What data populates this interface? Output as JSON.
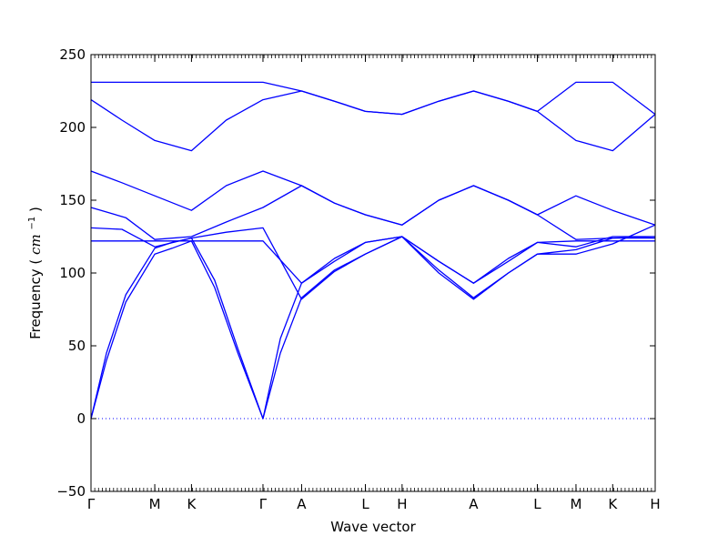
{
  "chart_data": {
    "type": "line",
    "title": "",
    "xlabel": "Wave vector",
    "ylabel": "Frequency",
    "ylabel_unit": "cm",
    "ylabel_unit_exp": "−1",
    "ylim": [
      -50,
      250
    ],
    "yticks": [
      -50,
      0,
      50,
      100,
      150,
      200,
      250
    ],
    "ytick_labels": [
      "−50",
      "0",
      "50",
      "100",
      "150",
      "200",
      "250"
    ],
    "xlim": [
      0,
      14.6
    ],
    "xticks": [
      {
        "x": 0,
        "label": "Γ"
      },
      {
        "x": 1.65,
        "label": "M"
      },
      {
        "x": 2.6,
        "label": "K"
      },
      {
        "x": 4.45,
        "label": "Γ"
      },
      {
        "x": 5.45,
        "label": "A"
      },
      {
        "x": 7.1,
        "label": "L"
      },
      {
        "x": 8.05,
        "label": "H"
      },
      {
        "x": 9.9,
        "label": "A"
      },
      {
        "x": 11.55,
        "label": "L"
      },
      {
        "x": 12.55,
        "label": "M"
      },
      {
        "x": 13.5,
        "label": "K"
      },
      {
        "x": 14.6,
        "label": "H"
      }
    ],
    "zero_line": true,
    "grid": false,
    "line_color": "#0000ff",
    "series": [
      {
        "points": [
          [
            0,
            0
          ],
          [
            0.4,
            40
          ],
          [
            0.9,
            80
          ],
          [
            1.65,
            113
          ],
          [
            2.1,
            117
          ],
          [
            2.6,
            122
          ],
          [
            3.2,
            90
          ],
          [
            3.8,
            45
          ],
          [
            4.45,
            0
          ],
          [
            4.9,
            45
          ],
          [
            5.45,
            83
          ],
          [
            6.3,
            102
          ],
          [
            7.1,
            113
          ],
          [
            8.05,
            125
          ],
          [
            9.0,
            102
          ],
          [
            9.9,
            83
          ],
          [
            10.8,
            100
          ],
          [
            11.55,
            113
          ],
          [
            12.55,
            116
          ],
          [
            13.5,
            124
          ],
          [
            14.6,
            124
          ]
        ]
      },
      {
        "points": [
          [
            0,
            0
          ],
          [
            0.4,
            45
          ],
          [
            0.9,
            85
          ],
          [
            1.65,
            117
          ],
          [
            2.1,
            121
          ],
          [
            2.6,
            124
          ],
          [
            3.2,
            95
          ],
          [
            3.8,
            48
          ],
          [
            4.45,
            0
          ],
          [
            4.9,
            55
          ],
          [
            5.45,
            93
          ],
          [
            6.3,
            108
          ],
          [
            7.1,
            121
          ],
          [
            8.05,
            125
          ],
          [
            9.0,
            108
          ],
          [
            9.9,
            93
          ],
          [
            10.8,
            108
          ],
          [
            11.55,
            121
          ],
          [
            12.55,
            118
          ],
          [
            13.5,
            125
          ],
          [
            14.6,
            125
          ]
        ]
      },
      {
        "points": [
          [
            0,
            122
          ],
          [
            1.65,
            122
          ],
          [
            2.6,
            122
          ],
          [
            4.45,
            122
          ],
          [
            5.45,
            93
          ],
          [
            6.3,
            110
          ],
          [
            7.1,
            121
          ],
          [
            8.05,
            125
          ],
          [
            9.0,
            108
          ],
          [
            9.9,
            93
          ],
          [
            10.8,
            110
          ],
          [
            11.55,
            121
          ],
          [
            12.55,
            122
          ],
          [
            13.5,
            122
          ],
          [
            14.6,
            122
          ]
        ]
      },
      {
        "points": [
          [
            0,
            131
          ],
          [
            0.8,
            130
          ],
          [
            1.65,
            118
          ],
          [
            2.6,
            124
          ],
          [
            3.5,
            128
          ],
          [
            4.45,
            131
          ],
          [
            5.45,
            82
          ],
          [
            6.3,
            101
          ],
          [
            7.1,
            113
          ],
          [
            8.05,
            125
          ],
          [
            9.0,
            100
          ],
          [
            9.9,
            82
          ],
          [
            10.8,
            100
          ],
          [
            11.55,
            113
          ],
          [
            12.55,
            113
          ],
          [
            13.5,
            120
          ],
          [
            14.6,
            133
          ]
        ]
      },
      {
        "points": [
          [
            0,
            145
          ],
          [
            0.9,
            138
          ],
          [
            1.65,
            123
          ],
          [
            2.6,
            125
          ],
          [
            3.5,
            135
          ],
          [
            4.45,
            145
          ],
          [
            5.45,
            160
          ],
          [
            6.3,
            148
          ],
          [
            7.1,
            140
          ],
          [
            8.05,
            133
          ],
          [
            9.0,
            150
          ],
          [
            9.9,
            160
          ],
          [
            10.8,
            150
          ],
          [
            11.55,
            140
          ],
          [
            12.55,
            123
          ],
          [
            13.5,
            124
          ],
          [
            14.6,
            125
          ]
        ]
      },
      {
        "points": [
          [
            0,
            170
          ],
          [
            0.8,
            162
          ],
          [
            1.65,
            153
          ],
          [
            2.6,
            143
          ],
          [
            3.5,
            160
          ],
          [
            4.45,
            170
          ],
          [
            5.45,
            160
          ],
          [
            6.3,
            148
          ],
          [
            7.1,
            140
          ],
          [
            8.05,
            133
          ],
          [
            9.0,
            150
          ],
          [
            9.9,
            160
          ],
          [
            10.8,
            150
          ],
          [
            11.55,
            140
          ],
          [
            12.55,
            153
          ],
          [
            13.5,
            143
          ],
          [
            14.6,
            133
          ]
        ]
      },
      {
        "points": [
          [
            0,
            219
          ],
          [
            0.8,
            205
          ],
          [
            1.65,
            191
          ],
          [
            2.6,
            184
          ],
          [
            3.5,
            205
          ],
          [
            4.45,
            219
          ],
          [
            5.45,
            225
          ],
          [
            6.3,
            218
          ],
          [
            7.1,
            211
          ],
          [
            8.05,
            209
          ],
          [
            9.0,
            218
          ],
          [
            9.9,
            225
          ],
          [
            10.8,
            218
          ],
          [
            11.55,
            211
          ],
          [
            12.55,
            191
          ],
          [
            13.5,
            184
          ],
          [
            14.6,
            209
          ]
        ]
      },
      {
        "points": [
          [
            0,
            231
          ],
          [
            1.65,
            231
          ],
          [
            2.6,
            231
          ],
          [
            4.45,
            231
          ],
          [
            5.45,
            225
          ],
          [
            6.3,
            218
          ],
          [
            7.1,
            211
          ],
          [
            8.05,
            209
          ],
          [
            9.0,
            218
          ],
          [
            9.9,
            225
          ],
          [
            10.8,
            218
          ],
          [
            11.55,
            211
          ],
          [
            12.55,
            231
          ],
          [
            13.5,
            231
          ],
          [
            14.6,
            209
          ]
        ]
      }
    ]
  }
}
